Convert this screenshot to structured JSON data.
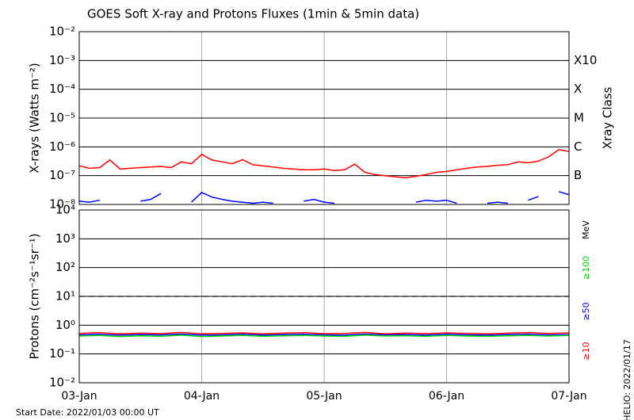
{
  "chart_data": [
    {
      "type": "line",
      "title": "GOES Soft X-ray and Protons Fluxes   (1min & 5min data)",
      "ylabel": "X-rays (Watts m⁻²)",
      "right_label": "Xray Class",
      "log": true,
      "grid": true,
      "xlim": [
        0,
        96
      ],
      "xticks": [
        0,
        24,
        48,
        72,
        96
      ],
      "ylim": [
        1e-08,
        0.01
      ],
      "yticks": [
        {
          "value": 1e-08,
          "label": "10⁻⁸"
        },
        {
          "value": 1e-07,
          "label": "10⁻⁷"
        },
        {
          "value": 1e-06,
          "label": "10⁻⁶"
        },
        {
          "value": 1e-05,
          "label": "10⁻⁵"
        },
        {
          "value": 0.0001,
          "label": "10⁻⁴"
        },
        {
          "value": 0.001,
          "label": "10⁻³"
        },
        {
          "value": 0.01,
          "label": "10⁻²"
        }
      ],
      "right_ticks": [
        {
          "value": 1e-07,
          "label": "B"
        },
        {
          "value": 1e-06,
          "label": "C"
        },
        {
          "value": 1e-05,
          "label": "M"
        },
        {
          "value": 0.0001,
          "label": "X"
        },
        {
          "value": 0.001,
          "label": "X10"
        }
      ],
      "x": [
        0,
        2,
        4,
        6,
        8,
        10,
        12,
        14,
        16,
        18,
        20,
        22,
        24,
        26,
        28,
        30,
        32,
        34,
        36,
        38,
        40,
        42,
        44,
        46,
        48,
        50,
        52,
        54,
        56,
        58,
        60,
        62,
        64,
        66,
        68,
        70,
        72,
        74,
        76,
        78,
        80,
        82,
        84,
        86,
        88,
        90,
        92,
        94,
        96
      ],
      "series": [
        {
          "color": "#ff0000",
          "values": [
            2.2e-07,
            1.8e-07,
            1.9e-07,
            3.5e-07,
            1.7e-07,
            1.8e-07,
            1.9e-07,
            2e-07,
            2.1e-07,
            1.9e-07,
            3e-07,
            2.6e-07,
            5.5e-07,
            3.5e-07,
            3e-07,
            2.6e-07,
            3.6e-07,
            2.4e-07,
            2.2e-07,
            2e-07,
            1.8e-07,
            1.7e-07,
            1.6e-07,
            1.6e-07,
            1.7e-07,
            1.5e-07,
            1.6e-07,
            2.5e-07,
            1.3e-07,
            1.1e-07,
            1e-07,
            9e-08,
            8.5e-08,
            9.5e-08,
            1.1e-07,
            1.3e-07,
            1.4e-07,
            1.6e-07,
            1.8e-07,
            2e-07,
            2.1e-07,
            2.3e-07,
            2.4e-07,
            3e-07,
            2.8e-07,
            3.2e-07,
            4.5e-07,
            8e-07,
            7e-07
          ]
        },
        {
          "color": "#0000ff",
          "values": [
            1.3e-08,
            1.2e-08,
            1.4e-08,
            null,
            null,
            null,
            1.3e-08,
            1.5e-08,
            2.4e-08,
            null,
            null,
            1.2e-08,
            2.6e-08,
            1.8e-08,
            1.5e-08,
            1.3e-08,
            1.2e-08,
            1.1e-08,
            1.2e-08,
            1.1e-08,
            null,
            null,
            1.3e-08,
            1.5e-08,
            1.2e-08,
            1.1e-08,
            null,
            null,
            null,
            null,
            null,
            null,
            null,
            1.2e-08,
            1.4e-08,
            1.3e-08,
            1.4e-08,
            1.1e-08,
            null,
            null,
            1.1e-08,
            1.2e-08,
            1.1e-08,
            null,
            1.4e-08,
            1.9e-08,
            null,
            2.8e-08,
            2.2e-08
          ]
        }
      ]
    },
    {
      "type": "line",
      "ylabel": "Protons (cm⁻²s⁻¹sr⁻¹)",
      "units": "MeV",
      "log": true,
      "grid": true,
      "threshold": 10,
      "xlim": [
        0,
        96
      ],
      "xticks": [
        {
          "value": 0,
          "label": "03-Jan"
        },
        {
          "value": 24,
          "label": "04-Jan"
        },
        {
          "value": 48,
          "label": "05-Jan"
        },
        {
          "value": 72,
          "label": "06-Jan"
        },
        {
          "value": 96,
          "label": "07-Jan"
        }
      ],
      "ylim": [
        0.01,
        10000.0
      ],
      "yticks": [
        {
          "value": 0.01,
          "label": "10⁻²"
        },
        {
          "value": 0.1,
          "label": "10⁻¹"
        },
        {
          "value": 1,
          "label": "10⁰"
        },
        {
          "value": 10,
          "label": "10¹"
        },
        {
          "value": 100,
          "label": "10²"
        },
        {
          "value": 1000,
          "label": "10³"
        },
        {
          "value": 10000,
          "label": "10⁴"
        }
      ],
      "x": [
        0,
        4,
        8,
        12,
        16,
        20,
        24,
        28,
        32,
        36,
        40,
        44,
        48,
        52,
        56,
        60,
        64,
        68,
        72,
        76,
        80,
        84,
        88,
        92,
        96
      ],
      "series": [
        {
          "name": "≥10",
          "color": "#ff0000",
          "values": [
            0.52,
            0.55,
            0.5,
            0.53,
            0.51,
            0.56,
            0.5,
            0.52,
            0.54,
            0.5,
            0.53,
            0.55,
            0.51,
            0.52,
            0.56,
            0.5,
            0.53,
            0.51,
            0.54,
            0.52,
            0.5,
            0.53,
            0.55,
            0.52,
            0.54
          ]
        },
        {
          "name": "≥50",
          "color": "#0000ff",
          "values": [
            0.46,
            0.48,
            0.45,
            0.47,
            0.46,
            0.49,
            0.45,
            0.46,
            0.48,
            0.45,
            0.47,
            0.48,
            0.46,
            0.45,
            0.49,
            0.46,
            0.47,
            0.45,
            0.48,
            0.46,
            0.45,
            0.47,
            0.48,
            0.46,
            0.47
          ]
        },
        {
          "name": "≥100",
          "color": "#00dd00",
          "values": [
            0.42,
            0.44,
            0.4,
            0.43,
            0.41,
            0.45,
            0.4,
            0.42,
            0.44,
            0.41,
            0.43,
            0.44,
            0.42,
            0.41,
            0.45,
            0.42,
            0.43,
            0.41,
            0.44,
            0.42,
            0.41,
            0.43,
            0.44,
            0.42,
            0.44
          ]
        }
      ]
    }
  ],
  "start_date": "Start Date: 2022/01/03 00:00 UT",
  "stamp": "HELIO: 2022/01/17"
}
